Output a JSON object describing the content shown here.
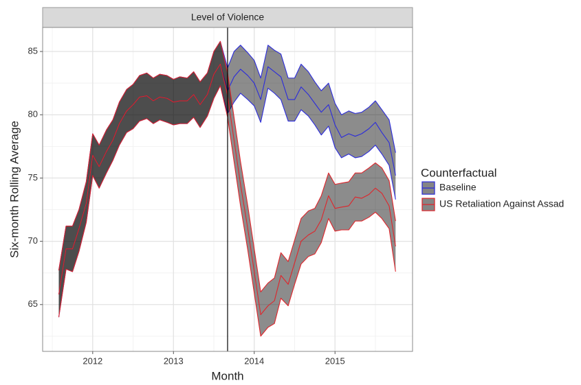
{
  "chart_data": {
    "type": "ribbon",
    "strip_title": "Level of Violence",
    "x_label": "Month",
    "y_label": "Six-month Rolling Average",
    "legend_title": "Counterfactual",
    "legend_position": "right",
    "grid": true,
    "xlim": [
      2011.38,
      2015.96
    ],
    "ylim": [
      61.3,
      86.9
    ],
    "xticks": [
      2012,
      2013,
      2014,
      2015
    ],
    "yticks": [
      65,
      70,
      75,
      80,
      85
    ],
    "vline": 2013.67,
    "x": [
      2011.58,
      2011.67,
      2011.75,
      2011.83,
      2011.92,
      2012,
      2012.08,
      2012.17,
      2012.25,
      2012.33,
      2012.42,
      2012.5,
      2012.58,
      2012.67,
      2012.75,
      2012.83,
      2012.92,
      2013,
      2013.08,
      2013.17,
      2013.25,
      2013.33,
      2013.42,
      2013.5,
      2013.58,
      2013.67,
      2013.75,
      2013.83,
      2013.92,
      2014,
      2014.08,
      2014.17,
      2014.25,
      2014.33,
      2014.42,
      2014.5,
      2014.58,
      2014.67,
      2014.75,
      2014.83,
      2014.92,
      2015,
      2015.08,
      2015.17,
      2015.25,
      2015.33,
      2015.42,
      2015.5,
      2015.58,
      2015.67,
      2015.75
    ],
    "series": [
      {
        "name": "Baseline",
        "color": "#2b2bdc",
        "values": [
          65.8,
          69.4,
          69.4,
          71.0,
          73.0,
          76.8,
          75.9,
          77.1,
          78.0,
          79.3,
          80.3,
          80.8,
          81.4,
          81.5,
          81.1,
          81.4,
          81.3,
          81.0,
          81.1,
          81.1,
          81.6,
          80.8,
          81.6,
          83.2,
          84.0,
          81.9,
          83.0,
          83.6,
          83.1,
          82.5,
          81.2,
          83.8,
          83.4,
          83.0,
          81.2,
          81.2,
          82.2,
          81.6,
          80.9,
          80.2,
          80.8,
          79.2,
          78.2,
          78.5,
          78.3,
          78.5,
          78.9,
          79.4,
          78.6,
          77.8,
          75.2
        ],
        "upper": [
          67.7,
          71.2,
          71.2,
          72.5,
          74.7,
          78.5,
          77.6,
          78.8,
          79.6,
          81.0,
          82.0,
          82.4,
          83.1,
          83.3,
          82.9,
          83.2,
          83.1,
          82.8,
          83.0,
          82.9,
          83.4,
          82.6,
          83.3,
          85.0,
          85.8,
          83.7,
          85.0,
          85.5,
          84.9,
          84.3,
          82.9,
          85.5,
          85.1,
          84.8,
          82.9,
          82.9,
          84.0,
          83.4,
          82.6,
          81.9,
          82.5,
          80.9,
          80.0,
          80.3,
          80.1,
          80.2,
          80.6,
          81.1,
          80.4,
          79.6,
          77.0
        ],
        "lower": [
          64.0,
          67.8,
          67.6,
          69.2,
          71.5,
          75.2,
          74.2,
          75.4,
          76.4,
          77.6,
          78.6,
          78.9,
          79.5,
          79.7,
          79.3,
          79.6,
          79.4,
          79.2,
          79.3,
          79.3,
          79.8,
          79.0,
          79.9,
          81.3,
          82.3,
          80.1,
          81.0,
          81.7,
          81.2,
          80.7,
          79.4,
          82.1,
          81.7,
          81.2,
          79.5,
          79.5,
          80.4,
          79.9,
          79.2,
          78.4,
          79.1,
          77.4,
          76.6,
          76.9,
          76.6,
          76.7,
          77.1,
          77.6,
          76.9,
          76.0,
          73.3
        ]
      },
      {
        "name": "US Retaliation Against Assad",
        "color": "#e0242a",
        "values": [
          65.8,
          69.4,
          69.4,
          71.0,
          73.0,
          76.8,
          75.9,
          77.1,
          78.0,
          79.3,
          80.3,
          80.8,
          81.4,
          81.5,
          81.1,
          81.4,
          81.3,
          81.0,
          81.1,
          81.1,
          81.6,
          80.8,
          81.6,
          83.2,
          84.0,
          81.5,
          78.0,
          74.5,
          71.0,
          67.6,
          64.2,
          64.9,
          65.3,
          67.3,
          66.6,
          68.3,
          70.0,
          70.5,
          70.8,
          71.7,
          73.6,
          72.6,
          72.7,
          72.8,
          73.5,
          73.4,
          73.7,
          74.2,
          73.8,
          72.8,
          69.6
        ],
        "upper": [
          67.7,
          71.2,
          71.2,
          72.5,
          74.7,
          78.5,
          77.6,
          78.8,
          79.6,
          81.0,
          82.0,
          82.4,
          83.1,
          83.3,
          82.9,
          83.2,
          83.1,
          82.8,
          83.0,
          82.9,
          83.4,
          82.6,
          83.3,
          85.0,
          85.8,
          83.3,
          79.8,
          76.3,
          72.8,
          69.4,
          66.0,
          66.7,
          67.1,
          69.1,
          68.4,
          70.1,
          71.8,
          72.4,
          72.6,
          73.6,
          75.4,
          74.5,
          74.6,
          74.7,
          75.4,
          75.4,
          75.8,
          76.2,
          75.8,
          74.8,
          71.6
        ],
        "lower": [
          64.0,
          67.8,
          67.6,
          69.2,
          71.5,
          75.2,
          74.2,
          75.4,
          76.4,
          77.6,
          78.6,
          78.9,
          79.5,
          79.7,
          79.3,
          79.6,
          79.4,
          79.2,
          79.3,
          79.3,
          79.8,
          79.0,
          79.9,
          81.3,
          82.3,
          79.8,
          76.3,
          72.8,
          69.3,
          65.9,
          62.5,
          63.2,
          63.5,
          65.5,
          64.9,
          66.6,
          68.2,
          68.8,
          69.0,
          69.9,
          71.8,
          70.8,
          70.9,
          70.9,
          71.6,
          71.6,
          71.9,
          72.3,
          71.8,
          71.0,
          67.6
        ]
      }
    ]
  }
}
